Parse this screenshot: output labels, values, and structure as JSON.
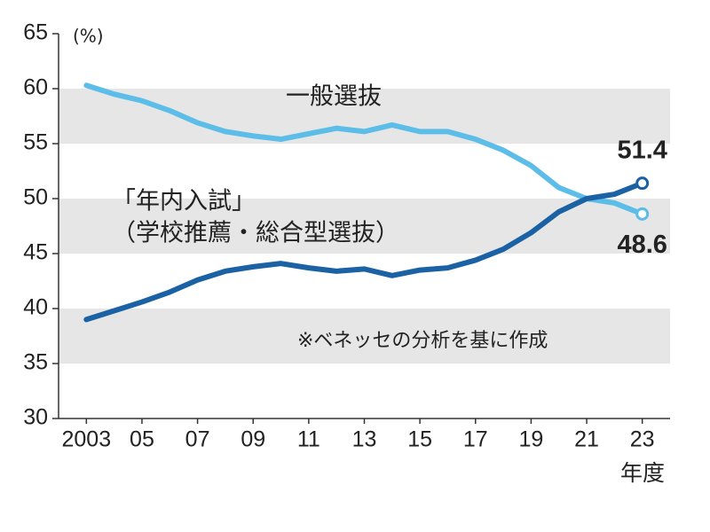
{
  "chart_data": {
    "type": "line",
    "y_unit_label": "(%)",
    "x_axis_label": "年度",
    "x": [
      2003,
      2004,
      2005,
      2006,
      2007,
      2008,
      2009,
      2010,
      2011,
      2012,
      2013,
      2014,
      2015,
      2016,
      2017,
      2018,
      2019,
      2020,
      2021,
      2022,
      2023
    ],
    "series": [
      {
        "name": "一般選抜",
        "color": "#5cbde9",
        "end_label": true,
        "values": [
          60.3,
          59.5,
          58.9,
          58.0,
          56.9,
          56.1,
          55.7,
          55.4,
          55.9,
          56.4,
          56.1,
          56.7,
          56.1,
          56.1,
          55.4,
          54.4,
          53.0,
          51.0,
          50.0,
          49.6,
          48.6
        ]
      },
      {
        "name": "「年内入試」",
        "color": "#1b62a5",
        "end_label": true,
        "values": [
          39.0,
          39.8,
          40.6,
          41.5,
          42.6,
          43.4,
          43.8,
          44.1,
          43.7,
          43.4,
          43.6,
          43.0,
          43.5,
          43.7,
          44.4,
          45.4,
          46.9,
          48.8,
          50.0,
          50.4,
          51.4
        ]
      }
    ],
    "series_subtitle": "（学校推薦・総合型選抜）",
    "annotation": "※ベネッセの分析を基に作成",
    "xlim": [
      2002,
      2024
    ],
    "xticks": [
      2003,
      {
        "value": 2005,
        "label": "05"
      },
      {
        "value": 2007,
        "label": "07"
      },
      {
        "value": 2009,
        "label": "09"
      },
      {
        "value": 2011,
        "label": "11"
      },
      {
        "value": 2013,
        "label": "13"
      },
      {
        "value": 2015,
        "label": "15"
      },
      {
        "value": 2017,
        "label": "17"
      },
      {
        "value": 2019,
        "label": "19"
      },
      {
        "value": 2021,
        "label": "21"
      },
      {
        "value": 2023,
        "label": "23"
      }
    ],
    "ylim": [
      30,
      65
    ],
    "yticks": [
      30,
      35,
      40,
      45,
      50,
      55,
      60,
      65
    ],
    "grid": "bands"
  }
}
